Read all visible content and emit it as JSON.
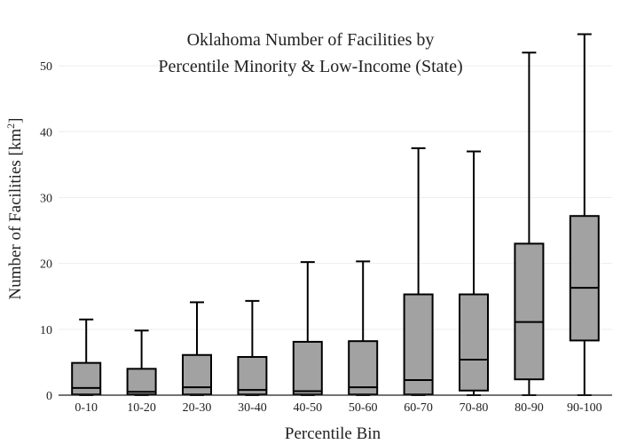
{
  "chart_data": {
    "type": "box",
    "title_lines": [
      "Oklahoma Number of Facilities by",
      "Percentile Minority & Low-Income (State)"
    ],
    "xlabel": "Percentile Bin",
    "ylabel": "Number of Facilities  [km",
    "ylabel_sup": "2",
    "ylabel_end": "]",
    "ylim": [
      0,
      55
    ],
    "yticks": [
      0,
      10,
      20,
      30,
      40,
      50
    ],
    "grid": true,
    "categories": [
      "0-10",
      "10-20",
      "20-30",
      "30-40",
      "40-50",
      "50-60",
      "60-70",
      "70-80",
      "80-90",
      "90-100"
    ],
    "boxes": [
      {
        "min": 0,
        "q1": 0.1,
        "median": 1.1,
        "q3": 4.9,
        "max": 11.5
      },
      {
        "min": 0,
        "q1": 0.1,
        "median": 0.5,
        "q3": 4.0,
        "max": 9.8
      },
      {
        "min": 0,
        "q1": 0.1,
        "median": 1.2,
        "q3": 6.1,
        "max": 14.1
      },
      {
        "min": 0,
        "q1": 0.1,
        "median": 0.8,
        "q3": 5.8,
        "max": 14.3
      },
      {
        "min": 0,
        "q1": 0.1,
        "median": 0.6,
        "q3": 8.1,
        "max": 20.2
      },
      {
        "min": 0,
        "q1": 0.1,
        "median": 1.2,
        "q3": 8.2,
        "max": 20.3
      },
      {
        "min": 0,
        "q1": 0.1,
        "median": 2.3,
        "q3": 15.3,
        "max": 37.5
      },
      {
        "min": 0,
        "q1": 0.7,
        "median": 5.4,
        "q3": 15.3,
        "max": 37.0
      },
      {
        "min": 0,
        "q1": 2.4,
        "median": 11.1,
        "q3": 23.0,
        "max": 52.0
      },
      {
        "min": 0,
        "q1": 8.3,
        "median": 16.3,
        "q3": 27.2,
        "max": 54.8
      }
    ]
  }
}
